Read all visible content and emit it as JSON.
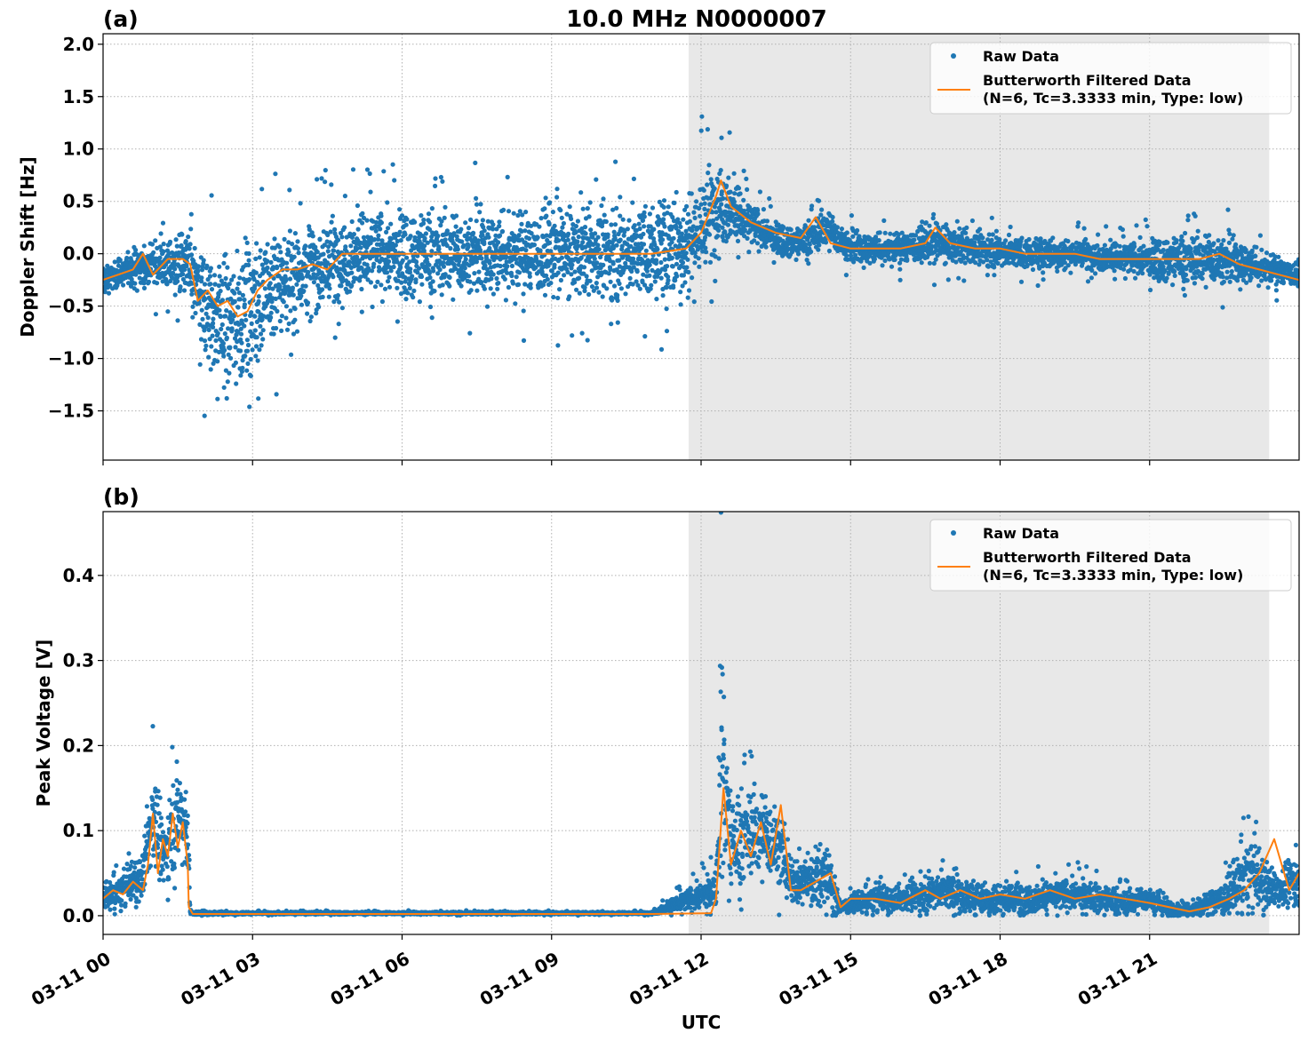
{
  "figure": {
    "title": "10.0 MHz N0000007",
    "xlabel": "UTC",
    "shaded_region": {
      "x_start_hours": 11.75,
      "x_end_hours": 23.4,
      "color": "#e8e8e8"
    },
    "colors": {
      "raw": "#1f77b4",
      "filtered": "#ff7f0e",
      "grid": "#b0b0b0"
    }
  },
  "chart_data": [
    {
      "type": "scatter",
      "panel_label": "(a)",
      "ylabel": "Doppler Shift [Hz]",
      "xlim_hours": [
        0,
        24
      ],
      "ylim": [
        -1.97,
        2.1
      ],
      "x_ticks_hours": [
        0,
        3,
        6,
        9,
        12,
        15,
        18,
        21
      ],
      "x_tick_labels": [
        "03-11 00",
        "03-11 03",
        "03-11 06",
        "03-11 09",
        "03-11 12",
        "03-11 15",
        "03-11 18",
        "03-11 21"
      ],
      "y_ticks": [
        -1.5,
        -1.0,
        -0.5,
        0.0,
        0.5,
        1.0,
        1.5,
        2.0
      ],
      "y_tick_labels": [
        "−1.5",
        "−1.0",
        "−0.5",
        "0.0",
        "0.5",
        "1.0",
        "1.5",
        "2.0"
      ],
      "grid": true,
      "legend_position": "top-right",
      "series": [
        {
          "name": "Raw Data",
          "kind": "points",
          "x_hours": [
            0.0,
            0.5,
            1.0,
            1.7,
            2.0,
            2.5,
            2.9,
            3.5,
            4.0,
            4.5,
            5.0,
            6.0,
            7.0,
            8.0,
            9.0,
            10.0,
            11.0,
            11.7,
            12.1,
            12.4,
            12.9,
            13.5,
            14.0,
            14.5,
            15.0,
            16.0,
            16.7,
            17.5,
            18.5,
            19.5,
            20.5,
            21.5,
            22.3,
            23.0,
            23.9
          ],
          "y": [
            -0.25,
            -0.15,
            -0.1,
            -0.1,
            -0.5,
            -0.65,
            -0.55,
            -0.3,
            -0.15,
            -0.1,
            0.0,
            0.0,
            0.0,
            0.0,
            0.0,
            0.0,
            0.02,
            0.1,
            0.3,
            0.5,
            0.3,
            0.15,
            0.1,
            0.25,
            0.05,
            0.05,
            0.1,
            0.05,
            0.0,
            0.0,
            -0.05,
            -0.05,
            -0.05,
            -0.1,
            -0.2
          ],
          "spread": [
            0.15,
            0.2,
            0.3,
            0.4,
            0.8,
            0.9,
            0.9,
            0.7,
            0.6,
            0.6,
            0.55,
            0.55,
            0.55,
            0.55,
            0.55,
            0.55,
            0.6,
            0.7,
            0.7,
            0.6,
            0.3,
            0.2,
            0.2,
            0.25,
            0.2,
            0.2,
            0.25,
            0.2,
            0.2,
            0.2,
            0.2,
            0.3,
            0.35,
            0.25,
            0.15
          ]
        },
        {
          "name": "Butterworth Filtered Data\n(N=6, Tc=3.3333 min, Type: low)",
          "kind": "line",
          "x_hours": [
            0.0,
            0.3,
            0.6,
            0.8,
            1.0,
            1.3,
            1.6,
            1.75,
            1.9,
            2.1,
            2.3,
            2.5,
            2.7,
            2.9,
            3.1,
            3.3,
            3.6,
            3.9,
            4.2,
            4.5,
            4.8,
            5.2,
            6.0,
            7.0,
            8.0,
            9.0,
            10.0,
            11.0,
            11.7,
            12.0,
            12.3,
            12.4,
            12.6,
            13.0,
            13.5,
            14.0,
            14.3,
            14.6,
            15.0,
            15.5,
            16.0,
            16.5,
            16.7,
            17.0,
            17.5,
            18.0,
            18.5,
            19.0,
            19.5,
            20.0,
            20.5,
            21.0,
            21.5,
            22.0,
            22.4,
            22.8,
            23.2,
            23.6,
            24.0
          ],
          "y": [
            -0.25,
            -0.2,
            -0.15,
            0.0,
            -0.2,
            -0.05,
            -0.05,
            -0.1,
            -0.45,
            -0.35,
            -0.5,
            -0.45,
            -0.6,
            -0.55,
            -0.35,
            -0.25,
            -0.15,
            -0.15,
            -0.1,
            -0.15,
            0.0,
            0.0,
            0.0,
            0.0,
            0.0,
            0.0,
            0.0,
            0.0,
            0.05,
            0.2,
            0.55,
            0.7,
            0.45,
            0.3,
            0.2,
            0.15,
            0.35,
            0.1,
            0.05,
            0.05,
            0.05,
            0.1,
            0.25,
            0.1,
            0.05,
            0.05,
            0.0,
            0.0,
            0.0,
            -0.05,
            -0.05,
            -0.05,
            -0.05,
            -0.05,
            0.0,
            -0.1,
            -0.15,
            -0.2,
            -0.25
          ]
        }
      ]
    },
    {
      "type": "scatter",
      "panel_label": "(b)",
      "ylabel": "Peak Voltage [V]",
      "xlim_hours": [
        0,
        24
      ],
      "ylim": [
        -0.022,
        0.475
      ],
      "x_ticks_hours": [
        0,
        3,
        6,
        9,
        12,
        15,
        18,
        21
      ],
      "x_tick_labels": [
        "03-11 00",
        "03-11 03",
        "03-11 06",
        "03-11 09",
        "03-11 12",
        "03-11 15",
        "03-11 18",
        "03-11 21"
      ],
      "y_ticks": [
        0.0,
        0.1,
        0.2,
        0.3,
        0.4
      ],
      "y_tick_labels": [
        "0.0",
        "0.1",
        "0.2",
        "0.3",
        "0.4"
      ],
      "grid": true,
      "legend_position": "top-right",
      "series": [
        {
          "name": "Raw Data",
          "kind": "points",
          "x_hours": [
            0.0,
            0.4,
            0.8,
            1.0,
            1.2,
            1.5,
            1.7,
            1.75,
            3.0,
            6.0,
            9.0,
            11.0,
            12.3,
            12.4,
            12.6,
            13.0,
            13.5,
            13.8,
            14.0,
            14.5,
            14.8,
            15.5,
            16.0,
            16.8,
            17.5,
            18.5,
            19.5,
            20.5,
            21.0,
            21.5,
            22.0,
            22.5,
            23.0,
            23.5,
            23.9
          ],
          "y": [
            0.02,
            0.03,
            0.05,
            0.12,
            0.07,
            0.12,
            0.1,
            0.003,
            0.003,
            0.003,
            0.003,
            0.003,
            0.03,
            0.2,
            0.08,
            0.1,
            0.09,
            0.04,
            0.04,
            0.05,
            0.01,
            0.02,
            0.02,
            0.03,
            0.02,
            0.02,
            0.025,
            0.015,
            0.02,
            0.005,
            0.01,
            0.02,
            0.05,
            0.03,
            0.04
          ],
          "spread": [
            0.02,
            0.025,
            0.04,
            0.08,
            0.05,
            0.07,
            0.08,
            0.003,
            0.002,
            0.002,
            0.002,
            0.002,
            0.03,
            0.2,
            0.08,
            0.07,
            0.07,
            0.03,
            0.04,
            0.05,
            0.01,
            0.02,
            0.02,
            0.03,
            0.025,
            0.025,
            0.025,
            0.02,
            0.02,
            0.01,
            0.015,
            0.025,
            0.06,
            0.03,
            0.04
          ]
        },
        {
          "name": "Butterworth Filtered Data\n(N=6, Tc=3.3333 min, Type: low)",
          "kind": "line",
          "x_hours": [
            0.0,
            0.2,
            0.4,
            0.6,
            0.8,
            0.9,
            1.0,
            1.1,
            1.2,
            1.3,
            1.4,
            1.5,
            1.6,
            1.7,
            1.72,
            1.8,
            3.0,
            6.0,
            9.0,
            11.0,
            12.2,
            12.3,
            12.45,
            12.6,
            12.8,
            13.0,
            13.2,
            13.4,
            13.6,
            13.8,
            14.0,
            14.3,
            14.6,
            14.8,
            15.0,
            15.5,
            16.0,
            16.5,
            16.8,
            17.2,
            17.6,
            18.0,
            18.5,
            19.0,
            19.5,
            20.0,
            20.5,
            21.0,
            21.4,
            21.8,
            22.2,
            22.6,
            22.9,
            23.2,
            23.5,
            23.8,
            24.0
          ],
          "y": [
            0.02,
            0.03,
            0.025,
            0.04,
            0.03,
            0.06,
            0.12,
            0.05,
            0.09,
            0.07,
            0.12,
            0.08,
            0.11,
            0.06,
            0.01,
            0.002,
            0.002,
            0.002,
            0.002,
            0.002,
            0.003,
            0.02,
            0.15,
            0.06,
            0.1,
            0.07,
            0.11,
            0.06,
            0.13,
            0.03,
            0.03,
            0.04,
            0.05,
            0.01,
            0.02,
            0.02,
            0.015,
            0.03,
            0.02,
            0.03,
            0.02,
            0.025,
            0.02,
            0.03,
            0.02,
            0.025,
            0.02,
            0.015,
            0.01,
            0.005,
            0.01,
            0.02,
            0.03,
            0.05,
            0.09,
            0.03,
            0.05
          ]
        }
      ]
    }
  ]
}
